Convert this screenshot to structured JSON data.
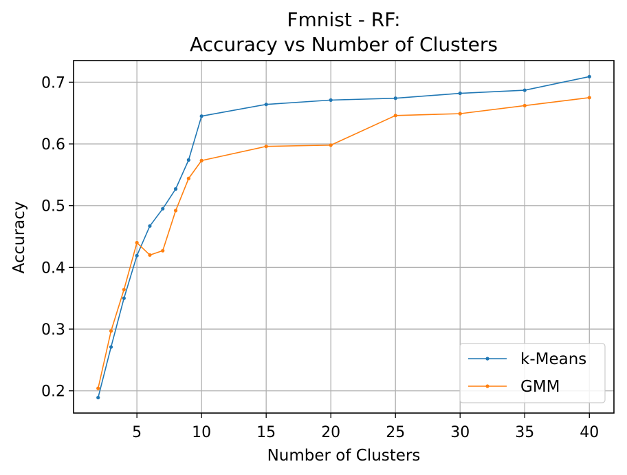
{
  "chart_data": {
    "type": "line",
    "title_lines": [
      "Fmnist - RF:",
      "Accuracy vs Number of Clusters"
    ],
    "xlabel": "Number of Clusters",
    "ylabel": "Accuracy",
    "xlim": [
      0.1,
      41.9
    ],
    "ylim": [
      0.164,
      0.735
    ],
    "xticks": [
      5,
      10,
      15,
      20,
      25,
      30,
      35,
      40
    ],
    "yticks": [
      0.2,
      0.3,
      0.4,
      0.5,
      0.6,
      0.7
    ],
    "ytick_labels": [
      "0.2",
      "0.3",
      "0.4",
      "0.5",
      "0.6",
      "0.7"
    ],
    "grid": true,
    "legend_position": "lower-right",
    "x": [
      2,
      3,
      4,
      5,
      6,
      7,
      8,
      9,
      10,
      15,
      20,
      25,
      30,
      35,
      40
    ],
    "series": [
      {
        "name": "k-Means",
        "color": "#1f77b4",
        "values": [
          0.189,
          0.271,
          0.35,
          0.419,
          0.467,
          0.495,
          0.527,
          0.574,
          0.645,
          0.664,
          0.671,
          0.674,
          0.682,
          0.687,
          0.709
        ]
      },
      {
        "name": "GMM",
        "color": "#ff7f0e",
        "values": [
          0.204,
          0.297,
          0.364,
          0.44,
          0.42,
          0.427,
          0.492,
          0.544,
          0.573,
          0.596,
          0.598,
          0.646,
          0.649,
          0.662,
          0.675
        ]
      }
    ]
  }
}
